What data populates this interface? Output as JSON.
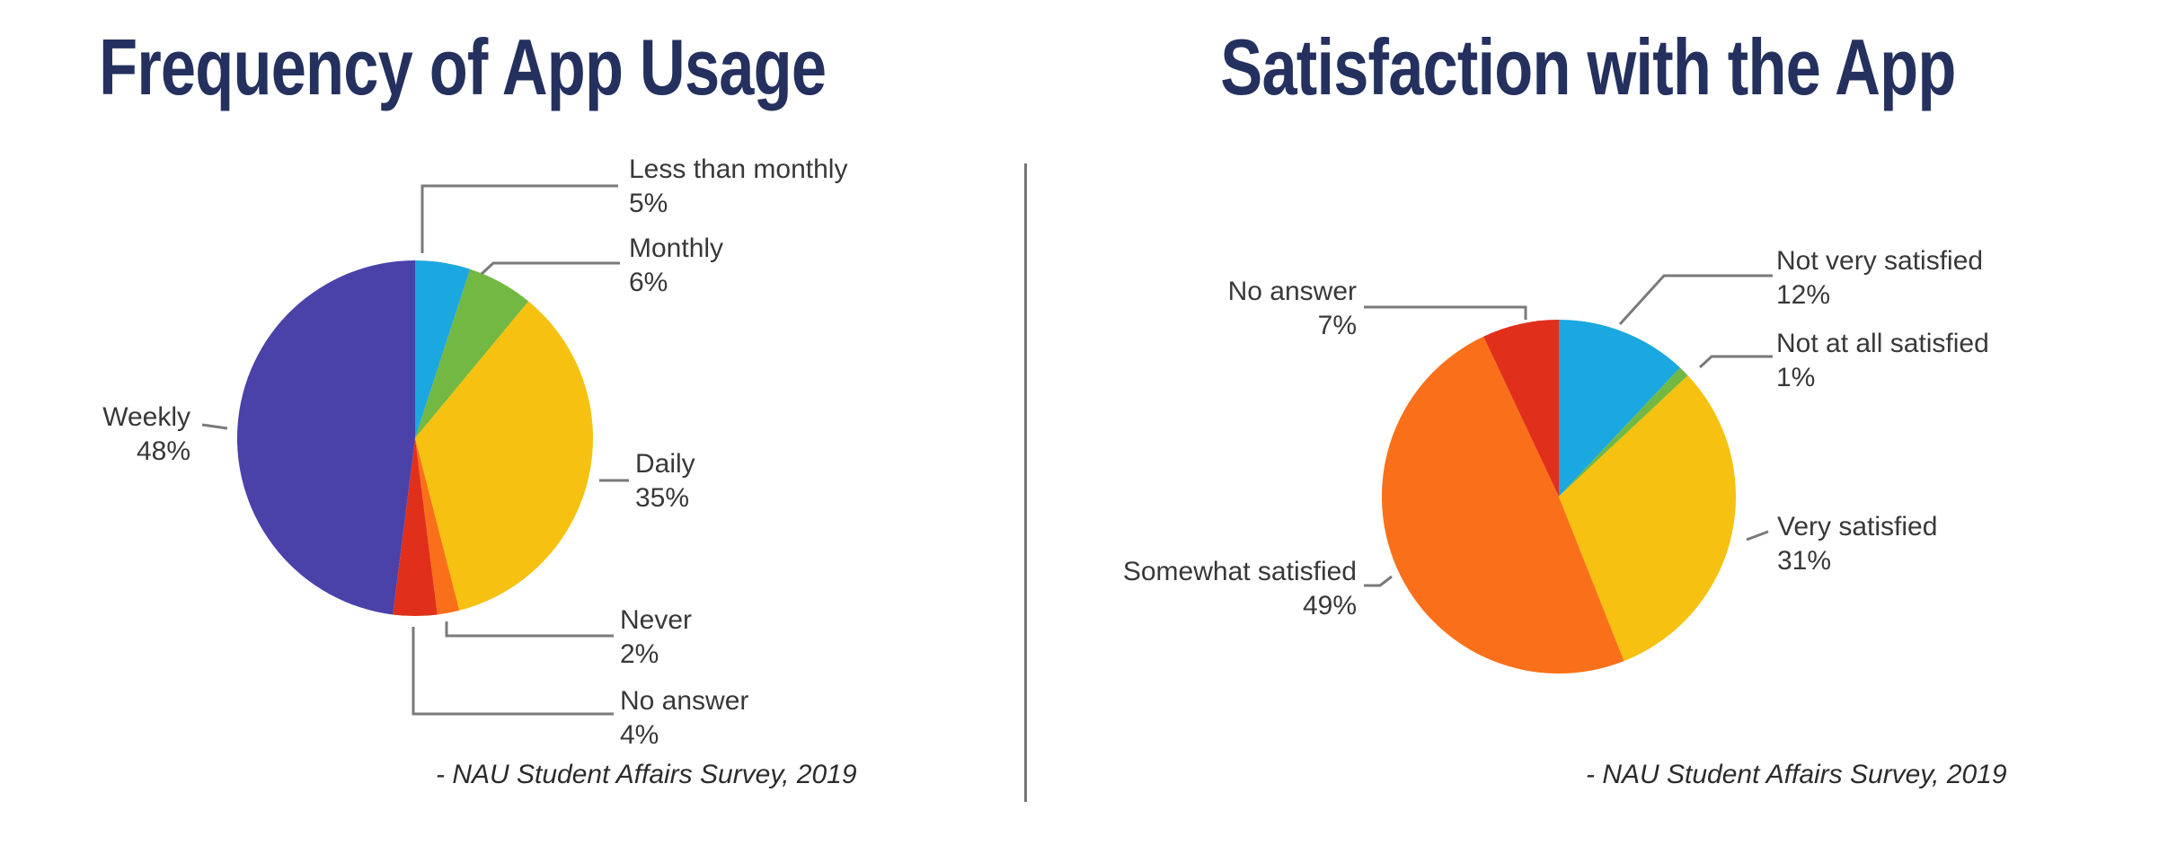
{
  "chart_data": [
    {
      "type": "pie",
      "title": "Frequency of App Usage",
      "source": "- NAU Student Affairs Survey, 2019",
      "start_angle_deg": 0,
      "direction": "clockwise",
      "legend_position": "callout-labels",
      "slices": [
        {
          "label": "Less than monthly",
          "value": 5,
          "pct_text": "5%",
          "color": "#1BA7DF"
        },
        {
          "label": "Monthly",
          "value": 6,
          "pct_text": "6%",
          "color": "#72B843"
        },
        {
          "label": "Daily",
          "value": 35,
          "pct_text": "35%",
          "color": "#F6C110"
        },
        {
          "label": "Never",
          "value": 2,
          "pct_text": "2%",
          "color": "#FA701A"
        },
        {
          "label": "No answer",
          "value": 4,
          "pct_text": "4%",
          "color": "#E0301C"
        },
        {
          "label": "Weekly",
          "value": 48,
          "pct_text": "48%",
          "color": "#4A41A9"
        }
      ]
    },
    {
      "type": "pie",
      "title": "Satisfaction with the App",
      "source": "- NAU Student Affairs Survey, 2019",
      "start_angle_deg": 0,
      "direction": "clockwise",
      "legend_position": "callout-labels",
      "slices": [
        {
          "label": "Not very satisfied",
          "value": 12,
          "pct_text": "12%",
          "color": "#1BA7DF"
        },
        {
          "label": "Not at all satisfied",
          "value": 1,
          "pct_text": "1%",
          "color": "#72B843"
        },
        {
          "label": "Very satisfied",
          "value": 31,
          "pct_text": "31%",
          "color": "#F6C110"
        },
        {
          "label": "Somewhat satisfied",
          "value": 49,
          "pct_text": "49%",
          "color": "#FA701A"
        },
        {
          "label": "No answer",
          "value": 7,
          "pct_text": "7%",
          "color": "#E0301C"
        }
      ]
    }
  ],
  "colors": {
    "title_navy": "#24305E",
    "label_text": "#383838",
    "leader_line": "#7A7A7A",
    "divider": "#757575"
  }
}
